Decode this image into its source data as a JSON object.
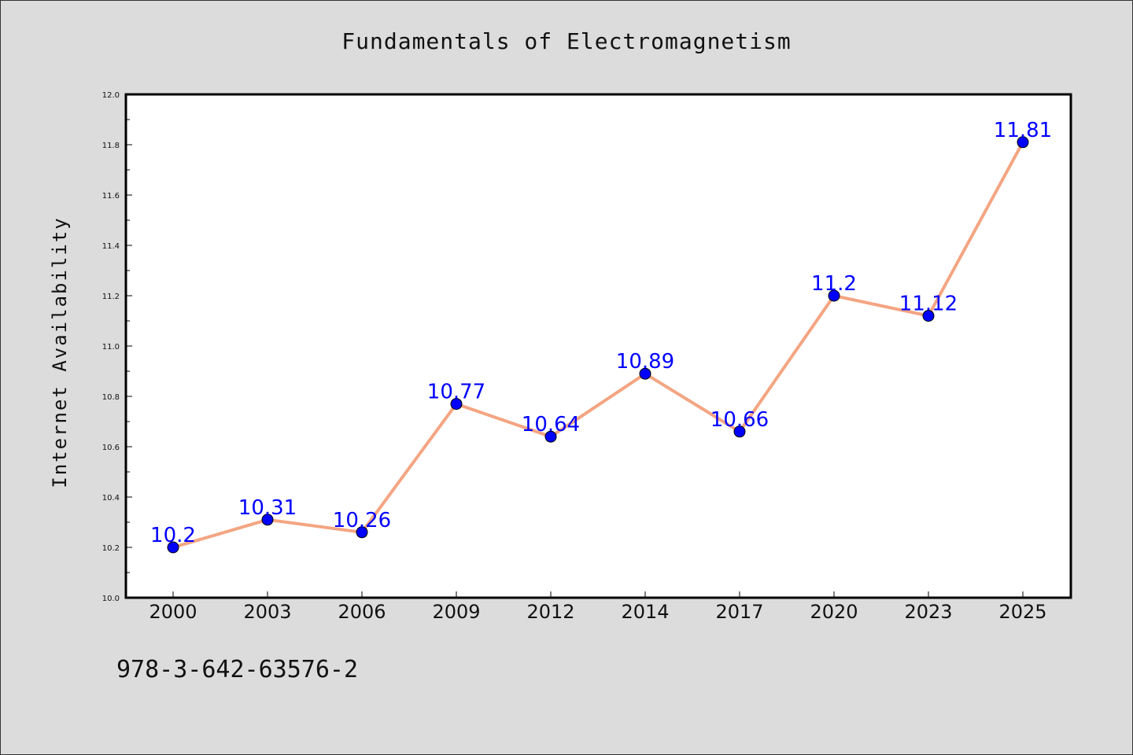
{
  "chart_data": {
    "type": "line",
    "title": "Fundamentals of Electromagnetism",
    "xlabel": "",
    "ylabel": "Internet Availability",
    "categories": [
      "2000",
      "2003",
      "2006",
      "2009",
      "2012",
      "2014",
      "2017",
      "2020",
      "2023",
      "2025"
    ],
    "series": [
      {
        "values": [
          10.2,
          10.31,
          10.26,
          10.77,
          10.64,
          10.89,
          10.66,
          11.2,
          11.12,
          11.81
        ]
      }
    ],
    "data_labels": [
      "10.2",
      "10.31",
      "10.26",
      "10.77",
      "10.64",
      "10.89",
      "10.66",
      "11.2",
      "11.12",
      "11.81"
    ],
    "ylim": [
      10.0,
      12.0
    ],
    "yticks": [
      "10.0",
      "10.2",
      "10.4",
      "10.6",
      "10.8",
      "11.0",
      "11.2",
      "11.4",
      "11.6",
      "11.8",
      "12.0"
    ],
    "grid": false,
    "colors": {
      "line": "#f4a582",
      "marker": "#0000ff",
      "label": "#0000ff"
    }
  },
  "footer_text": "978-3-642-63576-2"
}
